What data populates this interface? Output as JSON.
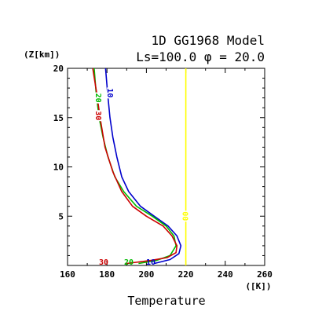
{
  "title_line1": "1D GG1968 Model",
  "title_line2": "Ls=100.0 φ = 20.0",
  "ylabel": "(Z[km])",
  "xlabel": "Temperature",
  "xunit": "([K])",
  "chart_data": {
    "type": "line",
    "title": "1D GG1968 Model  Ls=100.0 φ = 20.0",
    "xlabel": "Temperature",
    "xunit": "[K]",
    "ylabel": "Z[km]",
    "xlim": [
      160,
      260
    ],
    "ylim": [
      0,
      20
    ],
    "xticks": [
      160,
      180,
      200,
      220,
      240,
      260
    ],
    "yticks": [
      5,
      10,
      15,
      20
    ],
    "grid": false,
    "series": [
      {
        "name": "00",
        "color": "#ffff00",
        "x": [
          220,
          220
        ],
        "y": [
          0,
          20
        ],
        "contour_label": {
          "text": "00",
          "x": 220,
          "y": 5
        }
      },
      {
        "name": "10",
        "color": "#0000cc",
        "x": [
          204,
          212,
          216.5,
          217.5,
          215.5,
          211,
          204,
          197,
          191,
          187.5,
          185,
          183,
          181.5,
          180.3,
          179.3
        ],
        "y": [
          0.2,
          0.6,
          1.2,
          2,
          3,
          4,
          5,
          6,
          7.5,
          9,
          11,
          13,
          15,
          17.5,
          20
        ],
        "contour_label": {
          "text": "10",
          "x": 182,
          "y": 17.5
        }
      },
      {
        "name": "20",
        "color": "#00bb00",
        "x": [
          196,
          205,
          212,
          215,
          214,
          210,
          203,
          195,
          188.5,
          184,
          180.5,
          178,
          176,
          174.5,
          173.5
        ],
        "y": [
          0.2,
          0.5,
          1,
          2,
          3,
          4,
          5,
          6,
          7.5,
          9,
          11,
          13,
          15,
          17.5,
          20
        ],
        "contour_label": {
          "text": "20",
          "x": 176,
          "y": 17
        }
      },
      {
        "name": "30",
        "color": "#cc0000",
        "x": [
          190,
          202,
          210.5,
          215,
          215.5,
          213,
          208.5,
          200,
          193,
          187.5,
          183,
          179,
          176.5,
          174.8,
          172.8
        ],
        "y": [
          0.2,
          0.5,
          0.8,
          1.3,
          2,
          3,
          4,
          5,
          6,
          7.5,
          9.5,
          12,
          15,
          17.5,
          20
        ],
        "contour_label": {
          "text": "30",
          "x": 176,
          "y": 15.2
        }
      }
    ],
    "surface_labels": [
      "30",
      "20",
      "10"
    ]
  }
}
